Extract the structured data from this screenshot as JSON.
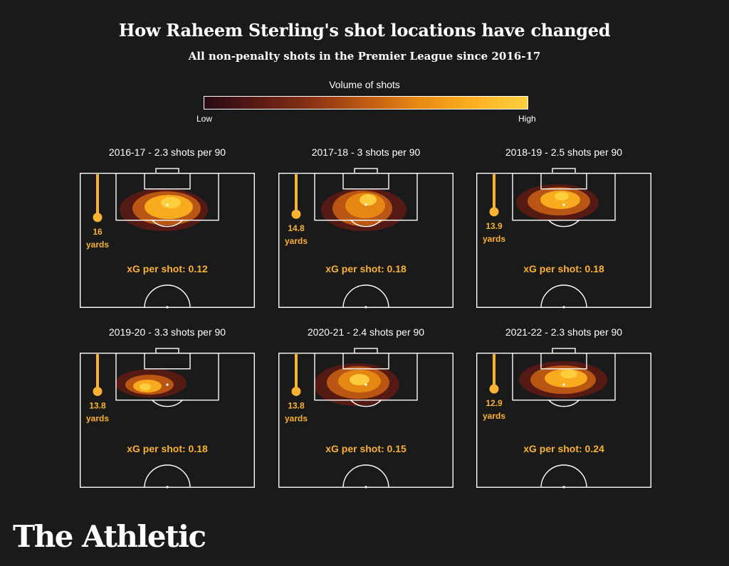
{
  "title": "How Raheem Sterling's shot locations have changed",
  "subtitle": "All non-penalty shots in the Premier League since 2016-17",
  "legend": {
    "title": "Volume of shots",
    "low_label": "Low",
    "high_label": "High",
    "colors": [
      "#2a0a12",
      "#5a1a14",
      "#8a3214",
      "#c05a14",
      "#e88a14",
      "#fbb020",
      "#fdd040"
    ]
  },
  "accent_color": "#f9b233",
  "brand": "The Athletic",
  "chart_data": [
    {
      "type": "heatmap",
      "title": "2016-17 - 2.3 shots per 90",
      "season": "2016-17",
      "shots_per_90": 2.3,
      "avg_distance_label": "16",
      "avg_distance_unit": "yards",
      "avg_distance_yards": 16,
      "xg_label": "xG per shot: 0.12",
      "xg_per_shot": 0.12
    },
    {
      "type": "heatmap",
      "title": "2017-18 - 3 shots per 90",
      "season": "2017-18",
      "shots_per_90": 3,
      "avg_distance_label": "14.8",
      "avg_distance_unit": "yards",
      "avg_distance_yards": 14.8,
      "xg_label": "xG per shot: 0.18",
      "xg_per_shot": 0.18
    },
    {
      "type": "heatmap",
      "title": "2018-19 - 2.5 shots per 90",
      "season": "2018-19",
      "shots_per_90": 2.5,
      "avg_distance_label": "13.9",
      "avg_distance_unit": "yards",
      "avg_distance_yards": 13.9,
      "xg_label": "xG per shot: 0.18",
      "xg_per_shot": 0.18
    },
    {
      "type": "heatmap",
      "title": "2019-20 - 3.3 shots per 90",
      "season": "2019-20",
      "shots_per_90": 3.3,
      "avg_distance_label": "13.8",
      "avg_distance_unit": "yards",
      "avg_distance_yards": 13.8,
      "xg_label": "xG per shot: 0.18",
      "xg_per_shot": 0.18
    },
    {
      "type": "heatmap",
      "title": "2020-21 - 2.4 shots per 90",
      "season": "2020-21",
      "shots_per_90": 2.4,
      "avg_distance_label": "13.8",
      "avg_distance_unit": "yards",
      "avg_distance_yards": 13.8,
      "xg_label": "xG per shot: 0.15",
      "xg_per_shot": 0.15
    },
    {
      "type": "heatmap",
      "title": "2021-22 - 2.3 shots per 90",
      "season": "2021-22",
      "shots_per_90": 2.3,
      "avg_distance_label": "12.9",
      "avg_distance_unit": "yards",
      "avg_distance_yards": 12.9,
      "xg_label": "xG per shot: 0.24",
      "xg_per_shot": 0.24
    }
  ]
}
